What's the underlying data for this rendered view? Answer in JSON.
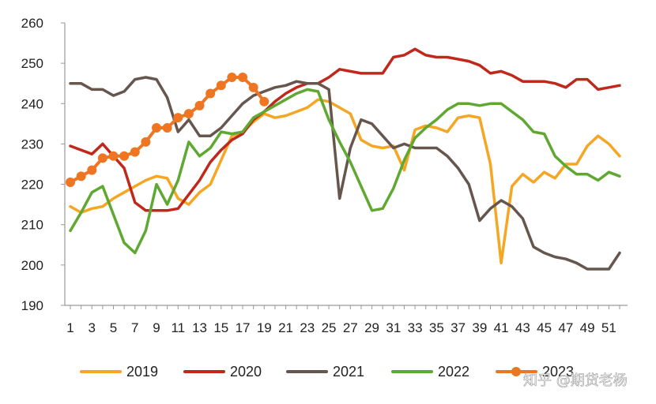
{
  "chart_data": {
    "type": "line",
    "title": "",
    "xlabel": "",
    "ylabel": "",
    "ylim": [
      190,
      260
    ],
    "yticks": [
      190,
      200,
      210,
      220,
      230,
      240,
      250,
      260
    ],
    "xlim": [
      1,
      52
    ],
    "xticks": [
      1,
      3,
      5,
      7,
      9,
      11,
      13,
      15,
      17,
      19,
      21,
      23,
      25,
      27,
      29,
      31,
      33,
      35,
      37,
      39,
      41,
      43,
      45,
      47,
      49,
      51
    ],
    "legend_position": "bottom",
    "watermark": "知乎 @期货老杨",
    "series": [
      {
        "name": "2019",
        "color": "#F5A623",
        "markers": false,
        "values": [
          214.5,
          213,
          214,
          214.5,
          216.5,
          218,
          219.5,
          221,
          222,
          221.5,
          216.5,
          215,
          218,
          220,
          226,
          232,
          233,
          235.5,
          237.5,
          236.5,
          237,
          238,
          239,
          241,
          240.5,
          239,
          237.5,
          231,
          229.5,
          229,
          229.5,
          223.5,
          233.5,
          234.5,
          234,
          233,
          236.5,
          237,
          236.5,
          225,
          200.5,
          219.5,
          222.5,
          220.5,
          223,
          221.5,
          225,
          225,
          229.5,
          232,
          230,
          227
        ]
      },
      {
        "name": "2020",
        "color": "#C0281C",
        "markers": false,
        "values": [
          229.5,
          228.5,
          227.5,
          230,
          227,
          224,
          215.5,
          213.5,
          213.5,
          213.5,
          214,
          217.5,
          221,
          225.5,
          228.5,
          231,
          232.5,
          236,
          238,
          240.5,
          242.5,
          244,
          245,
          245,
          246.5,
          248.5,
          248,
          247.5,
          247.5,
          247.5,
          251.5,
          252,
          253.5,
          252,
          251.5,
          251.5,
          251,
          250.5,
          249.5,
          247.5,
          248,
          247,
          245.5,
          245.5,
          245.5,
          245,
          244,
          246,
          246,
          243.5,
          244,
          244.5
        ]
      },
      {
        "name": "2021",
        "color": "#66564E",
        "markers": false,
        "values": [
          245,
          245,
          243.5,
          243.5,
          242,
          243,
          246,
          246.5,
          246,
          241.5,
          233,
          236,
          232,
          232,
          234,
          237,
          240,
          242,
          243,
          244,
          244.5,
          245.5,
          245,
          245,
          243.5,
          216.5,
          229,
          236,
          235,
          232,
          229,
          230,
          229,
          229,
          229,
          227,
          224,
          220,
          211,
          214,
          216,
          214.5,
          211.5,
          204.5,
          203,
          202,
          201.5,
          200.5,
          199,
          199,
          199,
          203
        ]
      },
      {
        "name": "2022",
        "color": "#5FA832",
        "markers": false,
        "values": [
          208.5,
          213,
          218,
          219.5,
          212.5,
          205.5,
          203,
          208.5,
          220,
          215,
          221,
          230.5,
          227,
          229,
          233,
          232.5,
          233,
          236.5,
          238,
          239.5,
          241,
          242.5,
          243.5,
          243,
          236,
          230.5,
          225.5,
          219.5,
          213.5,
          214,
          219,
          226,
          231.5,
          234,
          236,
          238.5,
          240,
          240,
          239.5,
          240,
          240,
          238,
          236,
          233,
          232.5,
          227,
          224.5,
          222.5,
          222.5,
          221,
          223,
          222
        ]
      },
      {
        "name": "2023",
        "color": "#EE7623",
        "markers": true,
        "values": [
          220.5,
          222,
          223.5,
          226.5,
          227,
          227,
          228,
          230.5,
          234,
          234,
          236.5,
          237.5,
          239.5,
          242.5,
          244.5,
          246.5,
          246.5,
          244,
          240.5
        ]
      }
    ]
  }
}
